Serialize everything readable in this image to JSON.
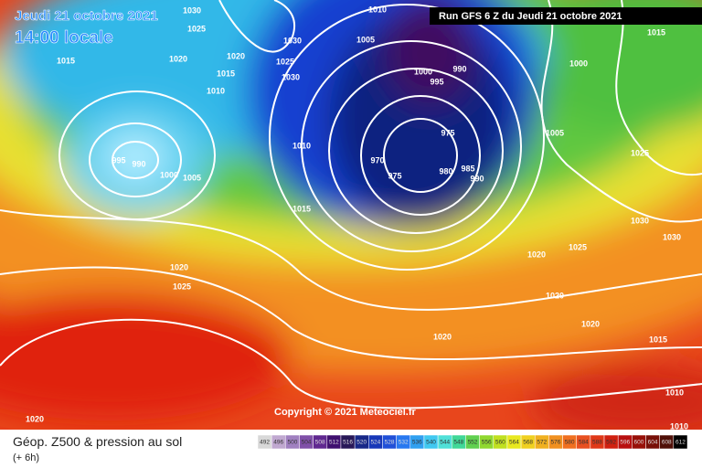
{
  "header": {
    "date_line": "Jeudi 21 octobre 2021",
    "time_line": "14:00 locale",
    "run_info": "Run GFS 6 Z du Jeudi 21 octobre 2021"
  },
  "copyright": "Copyright © 2021 Meteociel.fr",
  "footer": {
    "title": "Géop. Z500 & pression au sol",
    "lead": "(+ 6h)"
  },
  "colorbar": {
    "labels": [
      492,
      496,
      500,
      504,
      508,
      512,
      516,
      520,
      524,
      528,
      532,
      536,
      540,
      544,
      548,
      552,
      556,
      560,
      564,
      568,
      572,
      576,
      580,
      584,
      588,
      592,
      596,
      600,
      604,
      608,
      612
    ],
    "colors": [
      "#d8d8d8",
      "#c0a8d0",
      "#a080c0",
      "#8050a8",
      "#602890",
      "#401070",
      "#281858",
      "#182888",
      "#1838b8",
      "#2050d8",
      "#2878f0",
      "#30a0f0",
      "#40c8f0",
      "#50e0d8",
      "#40d898",
      "#60d050",
      "#90d830",
      "#c0e020",
      "#e8e820",
      "#f0d020",
      "#f0b020",
      "#f09020",
      "#f07020",
      "#e85020",
      "#e03818",
      "#d02010",
      "#b81010",
      "#981008",
      "#781008",
      "#501008",
      "#000000"
    ]
  },
  "isobar_labels": [
    1030,
    1025,
    1015,
    1020,
    1020,
    1015,
    1010,
    1030,
    1025,
    1030,
    1005,
    1010,
    1000,
    995,
    990,
    995,
    990,
    1000,
    1005,
    1010,
    975,
    970,
    975,
    980,
    985,
    990,
    1005,
    1000,
    1015,
    1025,
    1015,
    1030,
    1030,
    1025,
    1020,
    1020,
    1025,
    1020,
    1020,
    1020,
    1015,
    1010,
    1010,
    1020
  ]
}
